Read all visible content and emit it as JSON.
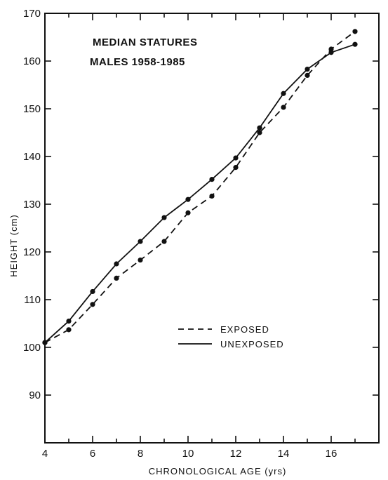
{
  "chart_data": {
    "type": "line",
    "title": [
      "MEDIAN STATURES",
      "MALES 1958-1985"
    ],
    "xlabel": "CHRONOLOGICAL AGE (yrs)",
    "ylabel": "HEIGHT (cm)",
    "xlim": [
      4,
      18
    ],
    "ylim": [
      80,
      170
    ],
    "xticks": [
      4,
      6,
      8,
      10,
      12,
      14,
      16
    ],
    "yticks": [
      90,
      100,
      110,
      120,
      130,
      140,
      150,
      160,
      170
    ],
    "grid": false,
    "legend_position": "center-right",
    "series": [
      {
        "name": "EXPOSED",
        "style": "dashed",
        "color": "#111111",
        "x": [
          4,
          5,
          6,
          7,
          8,
          9,
          10,
          11,
          12,
          13,
          14,
          15,
          16,
          17
        ],
        "y": [
          101.0,
          103.7,
          109.0,
          114.5,
          118.3,
          122.2,
          128.2,
          131.7,
          137.7,
          145.0,
          150.3,
          157.0,
          162.5,
          166.2
        ]
      },
      {
        "name": "UNEXPOSED",
        "style": "solid",
        "color": "#111111",
        "x": [
          4,
          5,
          6,
          7,
          8,
          9,
          10,
          11,
          12,
          13,
          14,
          15,
          16,
          17
        ],
        "y": [
          101.0,
          105.5,
          111.7,
          117.5,
          122.2,
          127.2,
          131.0,
          135.2,
          139.7,
          146.0,
          153.2,
          158.3,
          161.8,
          163.5
        ]
      }
    ]
  }
}
